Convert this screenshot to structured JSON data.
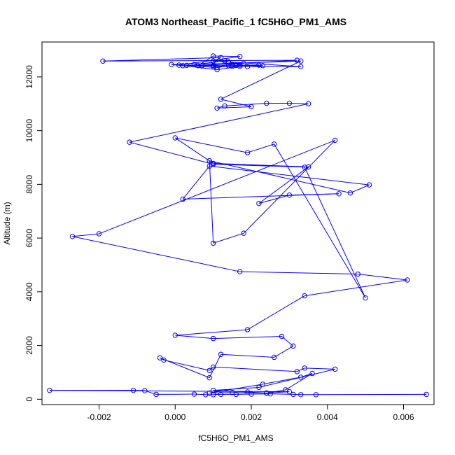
{
  "chart_data": {
    "type": "line",
    "title": "ATOM3 Northeast_Pacific_1 fC5H6O_PM1_AMS",
    "xlabel": "fC5H6O_PM1_AMS",
    "ylabel": "Altitude (m)",
    "xlim": [
      -0.0035,
      0.0068
    ],
    "ylim": [
      -200,
      13300
    ],
    "x_ticks": [
      -0.002,
      0.0,
      0.002,
      0.004,
      0.006
    ],
    "x_tick_labels": [
      "-0.002",
      "0.000",
      "0.002",
      "0.004",
      "0.006"
    ],
    "y_ticks": [
      0,
      2000,
      4000,
      6000,
      8000,
      10000,
      12000
    ],
    "y_tick_labels": [
      "0",
      "2000",
      "4000",
      "6000",
      "8000",
      "10000",
      "12000"
    ],
    "grid": false,
    "legend": "none",
    "series_color": "#0000ff",
    "series": [
      {
        "x": [
          0.0066,
          0.0037,
          0.0033,
          0.0031,
          0.0025,
          0.002,
          0.0016,
          0.0012,
          0.001,
          0.0008,
          0.0005,
          -0.0005,
          -0.0008,
          -0.0011,
          -0.0033,
          0.003,
          0.0024,
          0.0015,
          0.0009,
          0.0023,
          0.0033,
          0.0036,
          0.0029,
          0.0024,
          0.0019,
          0.001,
          0.0022,
          0.0042,
          0.0034,
          0.0032,
          0.001,
          0.0009,
          -0.0003,
          -0.0004,
          0.0009,
          0.0012,
          0.0026,
          0.0031,
          0.0028,
          0.001,
          0.0,
          0.0019,
          0.0034,
          0.0061,
          0.0048,
          0.0017,
          -0.0027,
          -0.002,
          0.0042,
          0.0018,
          0.001,
          0.0009,
          0.0046,
          0.0051,
          0.0009,
          0.0002,
          0.0043,
          0.003,
          0.0022,
          0.0035,
          0.001,
          0.0,
          0.0019,
          0.0026,
          0.005,
          0.0034,
          0.001,
          -0.0012,
          0.0035,
          0.003,
          0.0024,
          0.0013,
          0.0011,
          0.002,
          0.0012,
          0.0033,
          0.0005,
          0.0013,
          0.0017,
          0.0022,
          0.0014,
          0.0011,
          0.0003,
          0.0019,
          0.0023,
          0.0016,
          0.0015,
          0.001,
          0.0007,
          0.0007,
          0.0002,
          -0.0001,
          0.0018,
          0.0015,
          0.001,
          0.0033,
          0.0014,
          0.001,
          0.0012,
          -0.0019,
          0.0032,
          0.0006,
          0.001,
          0.0017,
          0.0001,
          0.0011,
          0.0017
        ],
        "y": [
          180,
          170,
          170,
          180,
          200,
          190,
          180,
          180,
          170,
          170,
          190,
          180,
          320,
          330,
          330,
          280,
          230,
          250,
          230,
          560,
          820,
          960,
          350,
          230,
          270,
          330,
          440,
          1120,
          1160,
          1030,
          1200,
          1070,
          1460,
          1540,
          800,
          1670,
          1560,
          1980,
          2340,
          2260,
          2380,
          2590,
          3850,
          4440,
          4660,
          4750,
          6060,
          6160,
          9640,
          6180,
          5810,
          8880,
          7680,
          7980,
          8680,
          7450,
          7650,
          7600,
          7290,
          8650,
          8780,
          9730,
          9180,
          9500,
          3770,
          8640,
          8750,
          9570,
          11000,
          11020,
          11020,
          10920,
          10840,
          10890,
          11170,
          12590,
          12460,
          12600,
          12440,
          12440,
          12420,
          12350,
          12430,
          12380,
          12420,
          12430,
          12390,
          12430,
          12420,
          12410,
          12420,
          12460,
          12510,
          12460,
          12390,
          12380,
          12560,
          12590,
          12720,
          12590,
          12620,
          12420,
          12780,
          12760,
          12440,
          12270,
          12390
        ]
      }
    ]
  }
}
